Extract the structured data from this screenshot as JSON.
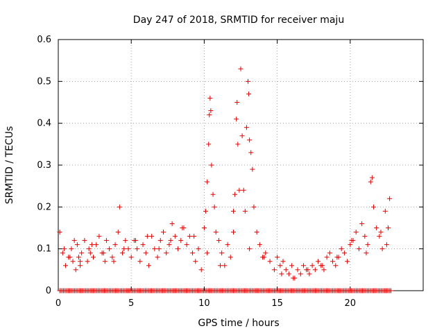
{
  "chart_data": {
    "type": "scatter",
    "title": "Day 247 of 2018, SRMTID for receiver maju",
    "xlabel": "GPS time / hours",
    "ylabel": "SRMTID / TECUs",
    "xlim": [
      0,
      25
    ],
    "ylim": [
      0,
      0.6
    ],
    "xticks": [
      0,
      5,
      10,
      15,
      20
    ],
    "xtick_labels": [
      "0",
      "5",
      "10",
      "15",
      "20"
    ],
    "yticks": [
      0,
      0.1,
      0.2,
      0.3,
      0.4,
      0.5,
      0.6
    ],
    "ytick_labels": [
      "0",
      "0.1",
      "0.2",
      "0.3",
      "0.4",
      "0.5",
      "0.6"
    ],
    "grid": true,
    "marker": "+",
    "color": "#e00000",
    "series": [
      {
        "name": "SRMTID",
        "x": [
          0.1,
          0.3,
          0.5,
          0.7,
          0.9,
          1.0,
          1.1,
          1.2,
          1.3,
          1.4,
          1.5,
          1.6,
          1.8,
          2.0,
          2.1,
          2.2,
          2.4,
          2.6,
          2.8,
          3.0,
          3.2,
          3.3,
          3.5,
          3.7,
          3.9,
          4.1,
          4.2,
          4.4,
          4.6,
          4.8,
          5.0,
          5.2,
          5.4,
          5.6,
          5.8,
          6.0,
          6.2,
          6.4,
          6.6,
          6.8,
          7.0,
          7.2,
          7.4,
          7.6,
          7.8,
          8.0,
          8.2,
          8.4,
          8.6,
          8.8,
          9.0,
          9.2,
          9.4,
          9.6,
          9.8,
          10.0,
          10.1,
          10.2,
          10.3,
          10.35,
          10.4,
          10.45,
          10.5,
          10.6,
          10.7,
          10.8,
          11.0,
          11.2,
          11.4,
          11.6,
          11.8,
          12.0,
          12.1,
          12.2,
          12.25,
          12.3,
          12.4,
          12.5,
          12.6,
          12.7,
          12.8,
          12.9,
          13.0,
          13.05,
          13.1,
          13.2,
          13.3,
          13.4,
          13.6,
          13.8,
          14.0,
          14.2,
          14.5,
          14.8,
          15.0,
          15.2,
          15.4,
          15.6,
          15.8,
          16.0,
          16.2,
          16.4,
          16.6,
          16.8,
          17.0,
          17.2,
          17.4,
          17.6,
          17.8,
          18.0,
          18.2,
          18.4,
          18.6,
          18.8,
          19.0,
          19.2,
          19.4,
          19.6,
          19.8,
          20.0,
          20.2,
          20.4,
          20.6,
          20.8,
          21.0,
          21.2,
          21.4,
          21.5,
          21.6,
          21.8,
          22.0,
          22.2,
          22.4,
          22.6,
          22.7,
          0.4,
          0.8,
          1.5,
          2.3,
          3.1,
          3.8,
          4.5,
          5.3,
          6.1,
          6.9,
          7.7,
          8.5,
          9.3,
          10.2,
          11.1,
          12.0,
          13.1,
          14.1,
          15.3,
          16.1,
          17.1,
          18.1,
          19.1,
          20.1,
          21.1,
          22.1,
          22.5
        ],
        "y": [
          0.14,
          0.09,
          0.06,
          0.08,
          0.1,
          0.07,
          0.12,
          0.05,
          0.11,
          0.08,
          0.06,
          0.09,
          0.12,
          0.07,
          0.1,
          0.09,
          0.08,
          0.11,
          0.13,
          0.09,
          0.07,
          0.12,
          0.1,
          0.08,
          0.11,
          0.14,
          0.2,
          0.09,
          0.12,
          0.1,
          0.08,
          0.12,
          0.1,
          0.07,
          0.11,
          0.09,
          0.06,
          0.13,
          0.1,
          0.08,
          0.12,
          0.14,
          0.09,
          0.11,
          0.16,
          0.13,
          0.1,
          0.12,
          0.15,
          0.11,
          0.13,
          0.09,
          0.07,
          0.1,
          0.05,
          0.15,
          0.19,
          0.26,
          0.35,
          0.42,
          0.46,
          0.43,
          0.3,
          0.23,
          0.2,
          0.14,
          0.12,
          0.09,
          0.06,
          0.11,
          0.08,
          0.19,
          0.23,
          0.41,
          0.45,
          0.35,
          0.24,
          0.53,
          0.37,
          0.24,
          0.19,
          0.39,
          0.5,
          0.47,
          0.36,
          0.33,
          0.29,
          0.2,
          0.14,
          0.11,
          0.08,
          0.09,
          0.07,
          0.05,
          0.08,
          0.06,
          0.07,
          0.05,
          0.04,
          0.06,
          0.03,
          0.05,
          0.04,
          0.06,
          0.05,
          0.04,
          0.06,
          0.05,
          0.07,
          0.06,
          0.05,
          0.08,
          0.09,
          0.07,
          0.06,
          0.08,
          0.1,
          0.09,
          0.07,
          0.11,
          0.12,
          0.14,
          0.1,
          0.16,
          0.13,
          0.11,
          0.26,
          0.27,
          0.2,
          0.15,
          0.13,
          0.1,
          0.19,
          0.15,
          0.22,
          0.1,
          0.08,
          0.07,
          0.11,
          0.09,
          0.07,
          0.1,
          0.12,
          0.13,
          0.1,
          0.12,
          0.15,
          0.13,
          0.09,
          0.06,
          0.14,
          0.1,
          0.08,
          0.04,
          0.03,
          0.05,
          0.06,
          0.08,
          0.12,
          0.09,
          0.14,
          0.11
        ]
      },
      {
        "name": "zero-baseline",
        "x_start": 0.1,
        "x_end": 22.8,
        "x_step": 0.085,
        "y": 0
      }
    ]
  }
}
